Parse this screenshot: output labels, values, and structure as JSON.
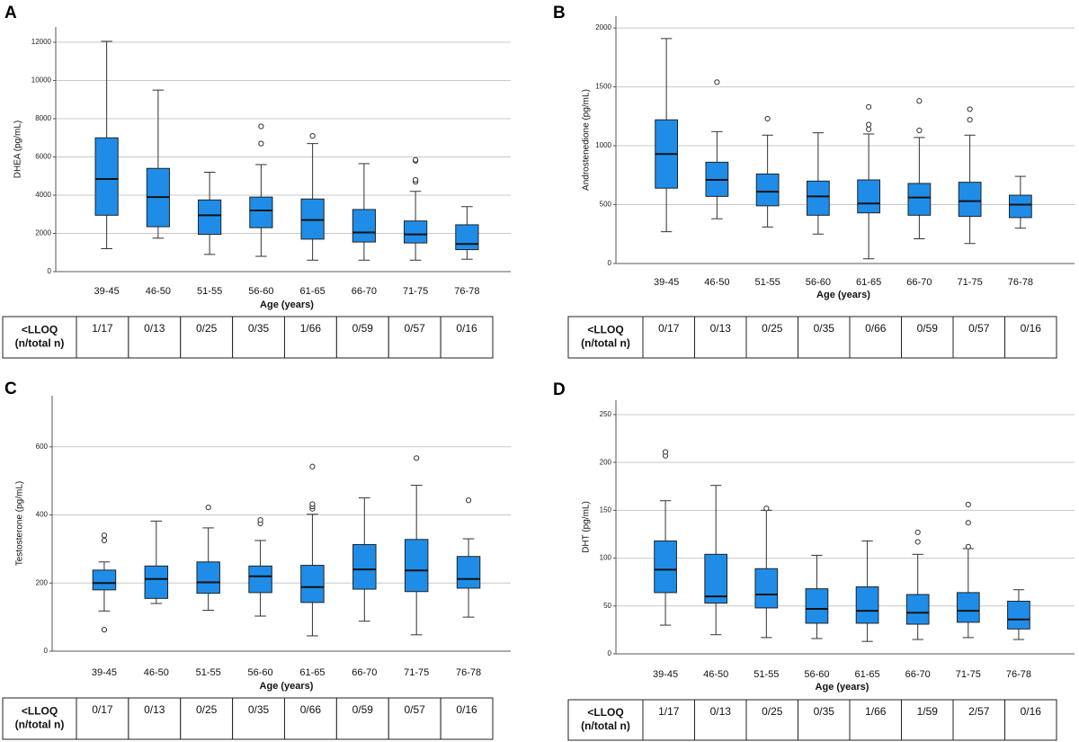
{
  "chart_data": [
    {
      "type": "box",
      "title": "A",
      "y_label": "DHEA (pg/mL)",
      "x_label": "Age (years)",
      "categories": [
        "39-45",
        "46-50",
        "51-55",
        "56-60",
        "61-65",
        "66-70",
        "71-75",
        "76-78"
      ],
      "ylim": [
        0,
        12800
      ],
      "yticks": [
        0,
        2000,
        4000,
        6000,
        8000,
        10000,
        12000
      ],
      "grid": true,
      "color": "#1f8de8",
      "boxes": [
        {
          "lower": 1200,
          "q1": 2950,
          "median": 4850,
          "q3": 7000,
          "upper": 12050,
          "outliers": []
        },
        {
          "lower": 1750,
          "q1": 2350,
          "median": 3900,
          "q3": 5400,
          "upper": 9500,
          "outliers": []
        },
        {
          "lower": 900,
          "q1": 1950,
          "median": 2950,
          "q3": 3750,
          "upper": 5200,
          "outliers": []
        },
        {
          "lower": 800,
          "q1": 2300,
          "median": 3200,
          "q3": 3900,
          "upper": 5600,
          "outliers": [
            6700,
            7600
          ]
        },
        {
          "lower": 600,
          "q1": 1700,
          "median": 2700,
          "q3": 3800,
          "upper": 6700,
          "outliers": [
            7100
          ]
        },
        {
          "lower": 600,
          "q1": 1550,
          "median": 2050,
          "q3": 3250,
          "upper": 5650,
          "outliers": []
        },
        {
          "lower": 600,
          "q1": 1500,
          "median": 1950,
          "q3": 2650,
          "upper": 4200,
          "outliers": [
            4700,
            4800,
            5800,
            5850
          ]
        },
        {
          "lower": 650,
          "q1": 1150,
          "median": 1450,
          "q3": 2450,
          "upper": 3400,
          "outliers": []
        }
      ],
      "table": {
        "header": [
          "<LLOQ",
          "(n/total n)"
        ],
        "cells": [
          "1/17",
          "0/13",
          "0/25",
          "0/35",
          "1/66",
          "0/59",
          "0/57",
          "0/16"
        ]
      }
    },
    {
      "type": "box",
      "title": "B",
      "y_label": "Androstenedione (pg/mL)",
      "x_label": "Age (years)",
      "categories": [
        "39-45",
        "46-50",
        "51-55",
        "56-60",
        "61-65",
        "66-70",
        "71-75",
        "76-78"
      ],
      "ylim": [
        0,
        2100
      ],
      "yticks": [
        0,
        500,
        1000,
        1500,
        2000
      ],
      "grid": true,
      "color": "#1f8de8",
      "boxes": [
        {
          "lower": 270,
          "q1": 640,
          "median": 930,
          "q3": 1220,
          "upper": 1910,
          "outliers": []
        },
        {
          "lower": 380,
          "q1": 570,
          "median": 710,
          "q3": 860,
          "upper": 1120,
          "outliers": [
            1540
          ]
        },
        {
          "lower": 310,
          "q1": 490,
          "median": 610,
          "q3": 760,
          "upper": 1090,
          "outliers": [
            1230
          ]
        },
        {
          "lower": 250,
          "q1": 410,
          "median": 570,
          "q3": 700,
          "upper": 1110,
          "outliers": []
        },
        {
          "lower": 40,
          "q1": 430,
          "median": 510,
          "q3": 710,
          "upper": 1100,
          "outliers": [
            1140,
            1180,
            1330
          ]
        },
        {
          "lower": 210,
          "q1": 410,
          "median": 560,
          "q3": 680,
          "upper": 1070,
          "outliers": [
            1130,
            1380
          ]
        },
        {
          "lower": 170,
          "q1": 400,
          "median": 530,
          "q3": 690,
          "upper": 1090,
          "outliers": [
            1220,
            1310
          ]
        },
        {
          "lower": 300,
          "q1": 390,
          "median": 500,
          "q3": 580,
          "upper": 740,
          "outliers": []
        }
      ],
      "table": {
        "header": [
          "<LLOQ",
          "(n/total n)"
        ],
        "cells": [
          "0/17",
          "0/13",
          "0/25",
          "0/35",
          "0/66",
          "0/59",
          "0/57",
          "0/16"
        ]
      }
    },
    {
      "type": "box",
      "title": "C",
      "y_label": "Testosterone (pg/mL)",
      "x_label": "Age (years)",
      "categories": [
        "39-45",
        "46-50",
        "51-55",
        "56-60",
        "61-65",
        "66-70",
        "71-75",
        "76-78"
      ],
      "ylim": [
        0,
        750
      ],
      "yticks": [
        0,
        200,
        400,
        600
      ],
      "grid": true,
      "color": "#1f8de8",
      "boxes": [
        {
          "lower": 118,
          "q1": 180,
          "median": 200,
          "q3": 238,
          "upper": 262,
          "outliers": [
            63,
            325,
            340
          ]
        },
        {
          "lower": 140,
          "q1": 155,
          "median": 212,
          "q3": 250,
          "upper": 382,
          "outliers": []
        },
        {
          "lower": 120,
          "q1": 170,
          "median": 202,
          "q3": 262,
          "upper": 362,
          "outliers": [
            422
          ]
        },
        {
          "lower": 103,
          "q1": 172,
          "median": 220,
          "q3": 250,
          "upper": 325,
          "outliers": [
            375,
            385
          ]
        },
        {
          "lower": 45,
          "q1": 143,
          "median": 188,
          "q3": 252,
          "upper": 402,
          "outliers": [
            418,
            425,
            432,
            542
          ]
        },
        {
          "lower": 88,
          "q1": 182,
          "median": 240,
          "q3": 313,
          "upper": 450,
          "outliers": []
        },
        {
          "lower": 48,
          "q1": 175,
          "median": 237,
          "q3": 328,
          "upper": 487,
          "outliers": [
            567
          ]
        },
        {
          "lower": 100,
          "q1": 185,
          "median": 212,
          "q3": 278,
          "upper": 330,
          "outliers": [
            443
          ]
        }
      ],
      "table": {
        "header": [
          "<LLOQ",
          "(n/total n)"
        ],
        "cells": [
          "0/17",
          "0/13",
          "0/25",
          "0/35",
          "0/66",
          "0/59",
          "0/57",
          "0/16"
        ]
      }
    },
    {
      "type": "box",
      "title": "D",
      "y_label": "DHT (pg/mL)",
      "x_label": "Age (years)",
      "categories": [
        "39-45",
        "46-50",
        "51-55",
        "56-60",
        "61-65",
        "66-70",
        "71-75",
        "76-78"
      ],
      "ylim": [
        0,
        265
      ],
      "yticks": [
        0,
        50,
        100,
        150,
        200,
        250
      ],
      "grid": true,
      "color": "#1f8de8",
      "boxes": [
        {
          "lower": 30,
          "q1": 64,
          "median": 88,
          "q3": 118,
          "upper": 160,
          "outliers": [
            207,
            211
          ]
        },
        {
          "lower": 20,
          "q1": 53,
          "median": 60,
          "q3": 104,
          "upper": 176,
          "outliers": []
        },
        {
          "lower": 17,
          "q1": 48,
          "median": 62,
          "q3": 89,
          "upper": 150,
          "outliers": [
            152
          ]
        },
        {
          "lower": 16,
          "q1": 32,
          "median": 47,
          "q3": 68,
          "upper": 103,
          "outliers": []
        },
        {
          "lower": 13,
          "q1": 32,
          "median": 45,
          "q3": 70,
          "upper": 118,
          "outliers": []
        },
        {
          "lower": 15,
          "q1": 31,
          "median": 43,
          "q3": 62,
          "upper": 104,
          "outliers": [
            117,
            127
          ]
        },
        {
          "lower": 17,
          "q1": 33,
          "median": 45,
          "q3": 64,
          "upper": 110,
          "outliers": [
            112,
            137,
            156
          ]
        },
        {
          "lower": 15,
          "q1": 26,
          "median": 36,
          "q3": 55,
          "upper": 67,
          "outliers": []
        }
      ],
      "table": {
        "header": [
          "<LLOQ",
          "(n/total n)"
        ],
        "cells": [
          "1/17",
          "0/13",
          "0/25",
          "0/35",
          "1/66",
          "1/59",
          "2/57",
          "0/16"
        ]
      }
    }
  ]
}
